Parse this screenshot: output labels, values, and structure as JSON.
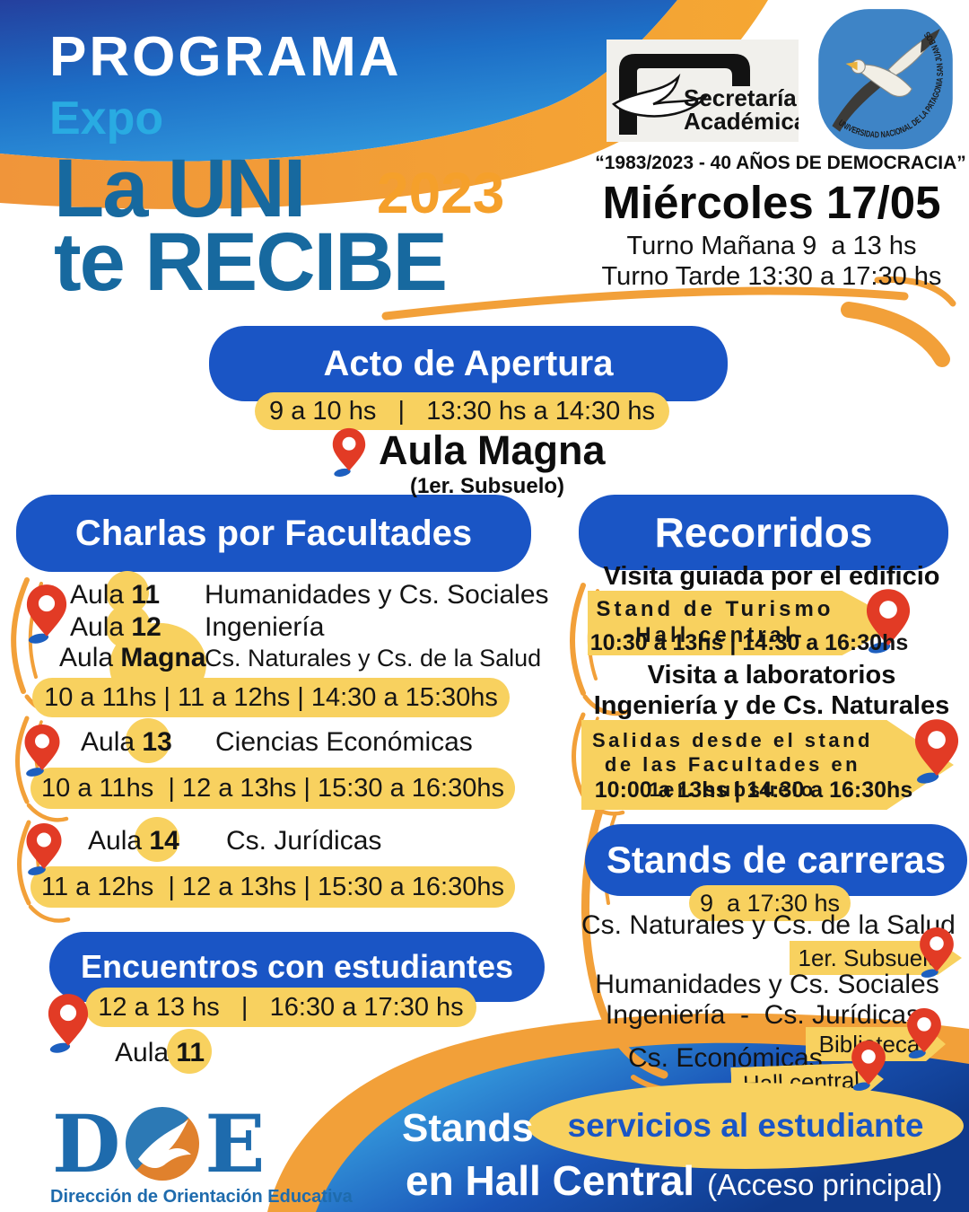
{
  "colors": {
    "section_blue": "#1a55c5",
    "highlight_yellow": "#f8d15f",
    "accent_orange": "#f2a039",
    "title_blue": "#17699f",
    "expo_cyan": "#29abe2",
    "year_orange": "#f5a02b",
    "pin_red": "#e23b25",
    "pin_shadow_blue": "#1d5fbf",
    "doe_blue": "#1e6bad",
    "logo_circle_blue": "#3e84c6"
  },
  "header": {
    "programa": "PROGRAMA",
    "expo": "Expo",
    "title_top": "La UNI",
    "year": "2023",
    "title_bottom": "te RECIBE",
    "secretaria_line1": "Secretaría",
    "secretaria_line2": "Académica",
    "university_ring_text": "UNIVERSIDAD NACIONAL DE LA PATAGONIA SAN JUAN BOSCO",
    "democracy": "“1983/2023 - 40 AÑOS DE DEMOCRACIA”",
    "date": "Miércoles 17/05",
    "turno_manana": "Turno Mañana 9  a 13 hs",
    "turno_tarde": "Turno Tarde 13:30 a 17:30 hs"
  },
  "apertura": {
    "title": "Acto de Apertura",
    "times": "9 a 10 hs   |   13:30 hs a 14:30 hs",
    "location": "Aula Magna",
    "note": "(1er. Subsuelo)"
  },
  "charlas": {
    "title": "Charlas por Facultades",
    "row1": {
      "label": "Aula",
      "num": "11",
      "faculty": "Humanidades y Cs. Sociales"
    },
    "row2": {
      "label": "Aula",
      "num": "12",
      "faculty": "Ingeniería"
    },
    "row3": {
      "label": "Aula",
      "num": "Magna",
      "faculty": "Cs. Naturales y Cs. de la Salud"
    },
    "times1": "10 a 11hs | 11 a 12hs | 14:30 a 15:30hs",
    "row4": {
      "label": "Aula",
      "num": "13",
      "faculty": "Ciencias Económicas"
    },
    "times2": "10 a 11hs  | 12 a 13hs | 15:30 a 16:30hs",
    "row5": {
      "label": "Aula",
      "num": "14",
      "faculty": "Cs. Jurídicas"
    },
    "times3": "11 a 12hs  | 12 a 13hs | 15:30 a 16:30hs"
  },
  "encuentros": {
    "title": "Encuentros con estudiantes",
    "times": "12 a 13 hs   |   16:30 a 17:30 hs",
    "label": "Aula",
    "num": "11"
  },
  "recorridos": {
    "title": "Recorridos",
    "subtitle1": "Visita guiada por el edificio",
    "banner1_line1": "Stand de Turismo",
    "banner1_line2": "-Hall central-",
    "times1": "10:30 a 13hs | 14:30 a 16:30hs",
    "subtitle2_line1": "Visita a laboratorios",
    "subtitle2_line2": "Ingeniería y de Cs. Naturales",
    "banner2_line1": "Salidas desde el stand",
    "banner2_line2": "de las Facultades en",
    "banner2_line3": "1er. subsuelo",
    "times2": "10:00 a 13hs | 14:30 a 16:30hs"
  },
  "stands": {
    "title": "Stands de carreras",
    "times": "9  a 17:30 hs",
    "row1": "Cs. Naturales y Cs. de la Salud",
    "tag1": "1er. Subsuelo",
    "row2": "Humanidades y Cs. Sociales",
    "row3": "Ingeniería  -  Cs. Jurídicas",
    "tag2": "Biblioteca",
    "row4": "Cs. Económicas",
    "tag3": "Hall central"
  },
  "footer": {
    "doe_d": "D",
    "doe_e": "E",
    "doe_caption": "Dirección de Orientación Educativa",
    "stands_word": "Stands",
    "highlight": "servicios al estudiante",
    "line2": "en Hall Central",
    "line2_note": "(Acceso principal)"
  }
}
